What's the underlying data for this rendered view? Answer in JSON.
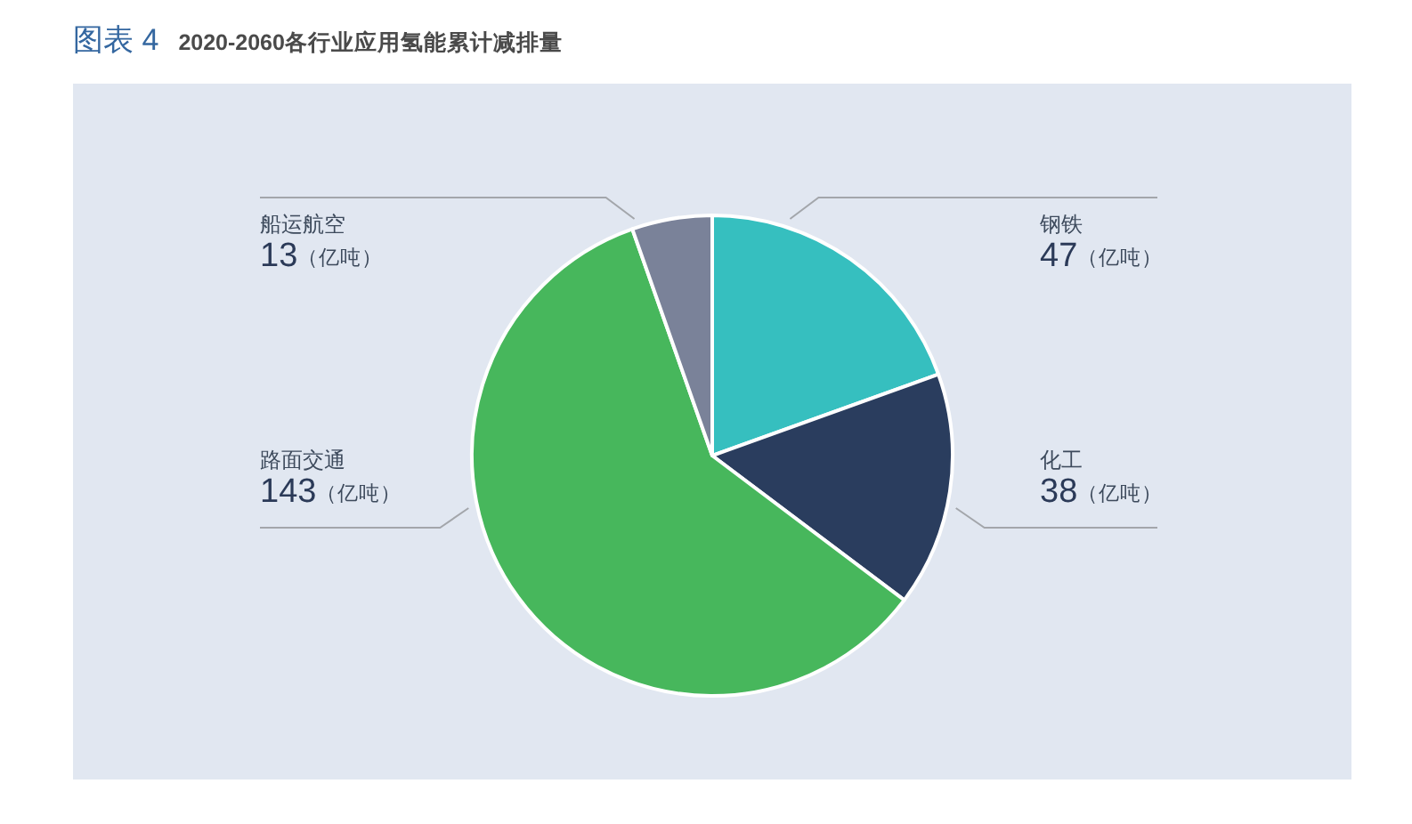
{
  "chart_data": {
    "type": "pie",
    "title": "图表 4",
    "subtitle": "2020-2060各行业应用氢能累计减排量",
    "categories": [
      "钢铁",
      "化工",
      "路面交通",
      "船运航空"
    ],
    "values": [
      47,
      38,
      143,
      13
    ],
    "value_labels": [
      "47（亿吨）",
      "38（亿吨）",
      "143（亿吨）",
      "13（亿吨）"
    ],
    "colors": [
      "#36bfbf",
      "#2a3d5e",
      "#47b75c",
      "#7a8299"
    ]
  }
}
